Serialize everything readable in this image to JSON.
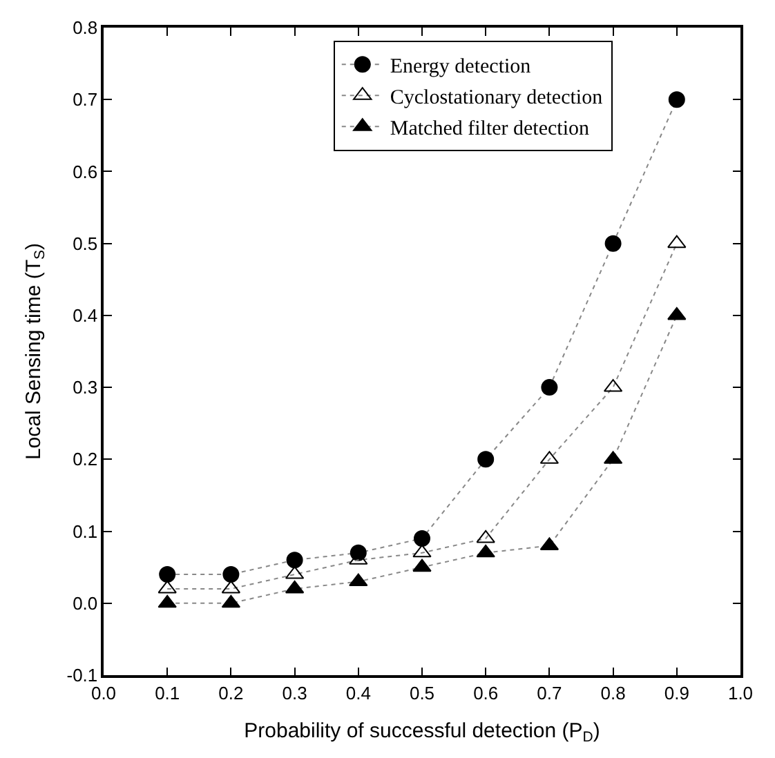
{
  "chart_data": {
    "type": "line",
    "xlabel": "Probability of successful detection (P$_{D}$)",
    "ylabel": "Local Sensing time (T$_{S}$)",
    "x": [
      0.1,
      0.2,
      0.3,
      0.4,
      0.5,
      0.6,
      0.7,
      0.8,
      0.9
    ],
    "series": [
      {
        "name": "Energy detection",
        "color": "#000000",
        "marker": "circle",
        "values": [
          0.04,
          0.04,
          0.06,
          0.07,
          0.09,
          0.2,
          0.3,
          0.5,
          0.7
        ]
      },
      {
        "name": "Cyclostationary detection",
        "color": "#000000",
        "marker": "triangle-open",
        "values": [
          0.02,
          0.02,
          0.04,
          0.06,
          0.07,
          0.09,
          0.2,
          0.3,
          0.5
        ]
      },
      {
        "name": "Matched filter detection",
        "color": "#000000",
        "marker": "triangle",
        "values": [
          0.0,
          0.0,
          0.02,
          0.03,
          0.05,
          0.07,
          0.08,
          0.2,
          0.4
        ]
      }
    ],
    "line_style": "dotted",
    "legend": "top",
    "xlim": [
      0.0,
      1.0
    ],
    "xticks": [
      {
        "value": 0,
        "label": "0.0"
      },
      0.1,
      0.2,
      0.3,
      0.4,
      0.5,
      0.6,
      0.7,
      0.8,
      0.9,
      {
        "value": 1,
        "label": "1.0"
      }
    ],
    "ylim": [
      -0.1,
      0.8
    ],
    "yticks": [
      -0.1,
      {
        "value": 0,
        "label": "0.0"
      },
      0.1,
      0.2,
      0.3,
      0.4,
      0.5,
      0.6,
      0.7,
      0.8
    ]
  }
}
